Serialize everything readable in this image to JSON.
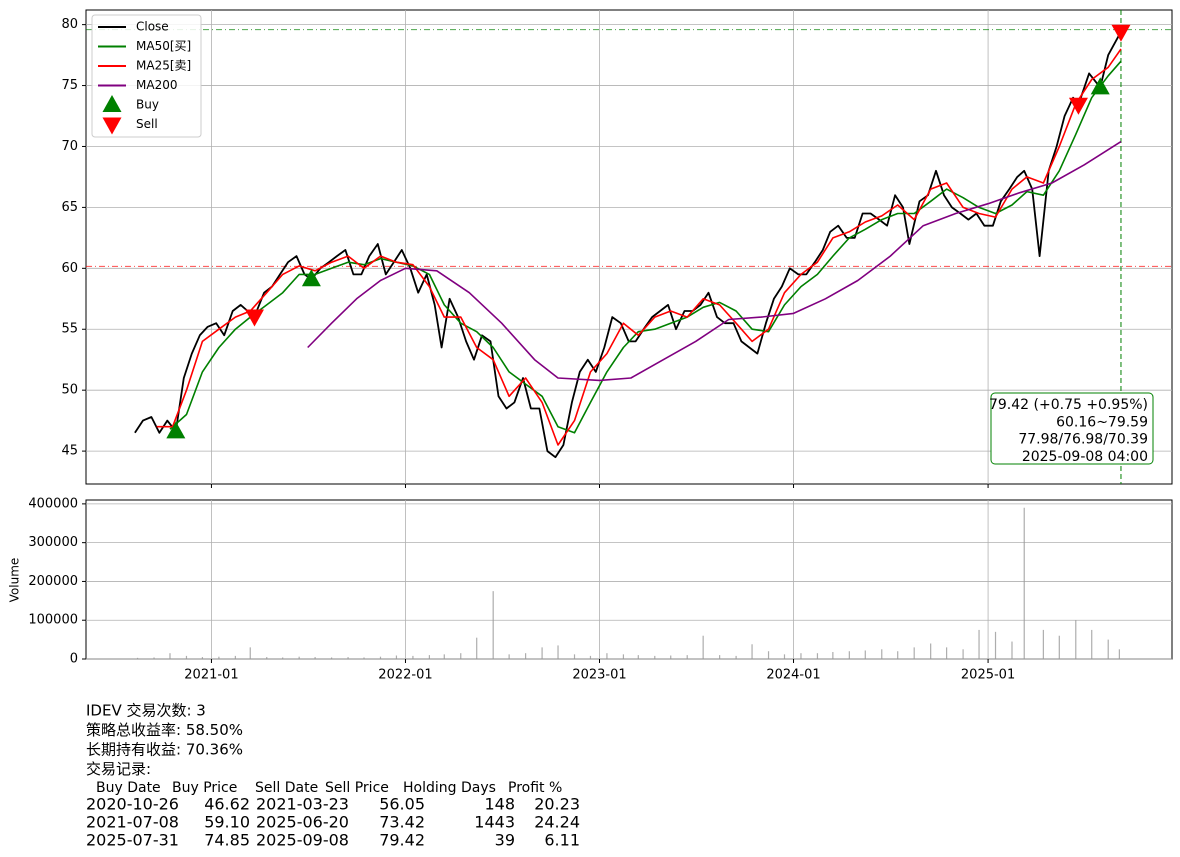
{
  "chart_data": [
    {
      "type": "line",
      "xlim": [
        "2020-05-10",
        "2025-12-13"
      ],
      "xticks": [
        "2021-01",
        "2022-01",
        "2023-01",
        "2024-01",
        "2025-01"
      ],
      "ylim": [
        42.3,
        81.2
      ],
      "yticks": [
        45,
        50,
        55,
        60,
        65,
        70,
        75,
        80
      ],
      "grid": true,
      "legend": "upper left",
      "series": [
        {
          "name": "Close",
          "color": "#000000",
          "x": [
            "2020-08-10",
            "2020-08-25",
            "2020-09-10",
            "2020-09-25",
            "2020-10-10",
            "2020-10-26",
            "2020-11-10",
            "2020-11-25",
            "2020-12-10",
            "2020-12-25",
            "2021-01-10",
            "2021-01-25",
            "2021-02-10",
            "2021-02-25",
            "2021-03-10",
            "2021-03-23",
            "2021-04-10",
            "2021-04-25",
            "2021-05-10",
            "2021-05-25",
            "2021-06-10",
            "2021-06-25",
            "2021-07-08",
            "2021-07-25",
            "2021-08-10",
            "2021-08-25",
            "2021-09-10",
            "2021-09-25",
            "2021-10-10",
            "2021-10-25",
            "2021-11-10",
            "2021-11-25",
            "2021-12-10",
            "2021-12-25",
            "2022-01-10",
            "2022-01-25",
            "2022-02-10",
            "2022-02-25",
            "2022-03-10",
            "2022-03-25",
            "2022-04-10",
            "2022-04-25",
            "2022-05-10",
            "2022-05-25",
            "2022-06-10",
            "2022-06-25",
            "2022-07-10",
            "2022-07-25",
            "2022-08-10",
            "2022-08-25",
            "2022-09-10",
            "2022-09-25",
            "2022-10-10",
            "2022-10-25",
            "2022-11-10",
            "2022-11-25",
            "2022-12-10",
            "2022-12-25",
            "2023-01-10",
            "2023-01-25",
            "2023-02-10",
            "2023-02-25",
            "2023-03-10",
            "2023-03-25",
            "2023-04-10",
            "2023-04-25",
            "2023-05-10",
            "2023-05-25",
            "2023-06-10",
            "2023-06-25",
            "2023-07-10",
            "2023-07-25",
            "2023-08-10",
            "2023-08-25",
            "2023-09-10",
            "2023-09-25",
            "2023-10-10",
            "2023-10-25",
            "2023-11-10",
            "2023-11-25",
            "2023-12-10",
            "2023-12-25",
            "2024-01-10",
            "2024-01-25",
            "2024-02-10",
            "2024-02-25",
            "2024-03-10",
            "2024-03-25",
            "2024-04-10",
            "2024-04-25",
            "2024-05-10",
            "2024-05-25",
            "2024-06-10",
            "2024-06-25",
            "2024-07-10",
            "2024-07-25",
            "2024-08-06",
            "2024-08-25",
            "2024-09-10",
            "2024-09-25",
            "2024-10-10",
            "2024-10-25",
            "2024-11-10",
            "2024-11-25",
            "2024-12-10",
            "2024-12-25",
            "2025-01-10",
            "2025-01-25",
            "2025-02-10",
            "2025-02-25",
            "2025-03-10",
            "2025-03-25",
            "2025-04-08",
            "2025-04-25",
            "2025-05-10",
            "2025-05-25",
            "2025-06-10",
            "2025-06-20",
            "2025-07-10",
            "2025-07-31",
            "2025-08-15",
            "2025-09-08"
          ],
          "values": [
            46.5,
            47.5,
            47.8,
            46.5,
            47.5,
            46.62,
            51,
            53,
            54.5,
            55.2,
            55.5,
            54.5,
            56.5,
            57,
            56.5,
            56.05,
            58,
            58.5,
            59.5,
            60.5,
            61,
            59.5,
            59.1,
            60,
            60.5,
            61,
            61.5,
            59.5,
            59.5,
            61,
            62,
            59.5,
            60.5,
            61.5,
            60,
            58,
            59.5,
            57,
            53.5,
            57.5,
            56,
            54,
            52.5,
            54.5,
            54,
            49.5,
            48.5,
            49,
            51,
            48.5,
            48.5,
            45,
            44.5,
            45.5,
            49,
            51.5,
            52.5,
            51.5,
            53.5,
            56,
            55.5,
            54,
            54,
            55,
            56,
            56.5,
            57,
            55,
            56.5,
            56.5,
            57,
            58,
            56,
            55.5,
            55.5,
            54,
            53.5,
            53,
            55.5,
            57.5,
            58.5,
            60,
            59.5,
            59.5,
            60.5,
            61.5,
            63,
            63.5,
            62.5,
            62.5,
            64.5,
            64.5,
            64,
            63.5,
            66,
            65,
            62,
            65.5,
            66,
            68,
            66,
            65,
            64.5,
            64,
            64.5,
            63.5,
            63.5,
            65.5,
            66.5,
            67.5,
            68,
            66.5,
            61,
            68,
            70,
            72.5,
            74,
            73.42,
            76,
            74.85,
            77.5,
            79.42
          ]
        },
        {
          "name": "MA50[买]",
          "color": "#008000",
          "x": [
            "2020-10-15",
            "2020-11-15",
            "2020-12-15",
            "2021-01-15",
            "2021-02-15",
            "2021-03-15",
            "2021-04-15",
            "2021-05-15",
            "2021-06-15",
            "2021-07-15",
            "2021-08-15",
            "2021-09-15",
            "2021-10-15",
            "2021-11-15",
            "2021-12-15",
            "2022-01-15",
            "2022-02-15",
            "2022-03-15",
            "2022-04-15",
            "2022-05-15",
            "2022-06-15",
            "2022-07-15",
            "2022-08-15",
            "2022-09-15",
            "2022-10-15",
            "2022-11-15",
            "2022-12-15",
            "2023-01-15",
            "2023-02-15",
            "2023-03-15",
            "2023-04-15",
            "2023-05-15",
            "2023-06-15",
            "2023-07-15",
            "2023-08-15",
            "2023-09-15",
            "2023-10-15",
            "2023-11-15",
            "2023-12-15",
            "2024-01-15",
            "2024-02-15",
            "2024-03-15",
            "2024-04-15",
            "2024-05-15",
            "2024-06-15",
            "2024-07-15",
            "2024-08-15",
            "2024-09-15",
            "2024-10-15",
            "2024-11-15",
            "2024-12-15",
            "2025-01-15",
            "2025-02-15",
            "2025-03-15",
            "2025-04-15",
            "2025-05-15",
            "2025-06-15",
            "2025-07-15",
            "2025-08-15",
            "2025-09-08"
          ],
          "values": [
            46.8,
            48,
            51.5,
            53.5,
            55,
            56,
            57,
            58,
            59.5,
            59.5,
            60,
            60.5,
            60.3,
            60.8,
            60.5,
            60.2,
            59.5,
            57,
            55.5,
            54.8,
            53.5,
            51.5,
            50.5,
            49.5,
            47,
            46.5,
            49,
            51.5,
            53.5,
            54.8,
            55,
            55.5,
            56,
            56.8,
            57.2,
            56.5,
            55,
            54.8,
            57,
            58.5,
            59.5,
            61,
            62.5,
            63.2,
            64,
            64.5,
            64.5,
            65.5,
            66.5,
            65.8,
            65,
            64.5,
            65.2,
            66.3,
            66,
            68,
            71,
            74,
            75.8,
            77
          ]
        },
        {
          "name": "MA25[卖]",
          "color": "#ff0000",
          "x": [
            "2020-09-20",
            "2020-10-20",
            "2020-11-15",
            "2020-12-15",
            "2021-01-15",
            "2021-02-15",
            "2021-03-15",
            "2021-04-15",
            "2021-05-15",
            "2021-06-15",
            "2021-07-15",
            "2021-08-15",
            "2021-09-15",
            "2021-10-15",
            "2021-11-15",
            "2021-12-15",
            "2022-01-15",
            "2022-02-15",
            "2022-03-15",
            "2022-04-15",
            "2022-05-15",
            "2022-06-15",
            "2022-07-15",
            "2022-08-15",
            "2022-09-15",
            "2022-10-15",
            "2022-11-15",
            "2022-12-15",
            "2023-01-15",
            "2023-02-15",
            "2023-03-15",
            "2023-04-15",
            "2023-05-15",
            "2023-06-15",
            "2023-07-15",
            "2023-08-15",
            "2023-09-15",
            "2023-10-15",
            "2023-11-15",
            "2023-12-15",
            "2024-01-15",
            "2024-02-15",
            "2024-03-15",
            "2024-04-15",
            "2024-05-15",
            "2024-06-15",
            "2024-07-15",
            "2024-08-15",
            "2024-09-15",
            "2024-10-15",
            "2024-11-15",
            "2024-12-15",
            "2025-01-15",
            "2025-02-15",
            "2025-03-15",
            "2025-04-15",
            "2025-05-15",
            "2025-06-15",
            "2025-07-15",
            "2025-08-15",
            "2025-09-08"
          ],
          "values": [
            47,
            47,
            50,
            54,
            55,
            56,
            56.5,
            58,
            59.5,
            60.2,
            59.8,
            60.5,
            61,
            60,
            61,
            60.5,
            60.3,
            58.5,
            56,
            56,
            53.5,
            52.5,
            49.5,
            51,
            49,
            45.5,
            47.5,
            51.5,
            53,
            55.5,
            54.5,
            56,
            56.5,
            56,
            57.5,
            57,
            55.5,
            54,
            55,
            58,
            59.5,
            60.5,
            62.5,
            63,
            63.8,
            64.3,
            65.2,
            64,
            66.5,
            67,
            65,
            64.5,
            64.2,
            66.5,
            67.5,
            67,
            70,
            73.5,
            75.5,
            76.5,
            78
          ]
        },
        {
          "name": "MA200",
          "color": "#800080",
          "x": [
            "2021-07-01",
            "2021-08-15",
            "2021-10-01",
            "2021-11-15",
            "2022-01-01",
            "2022-03-01",
            "2022-05-01",
            "2022-07-01",
            "2022-09-01",
            "2022-10-15",
            "2023-01-01",
            "2023-03-01",
            "2023-05-01",
            "2023-07-01",
            "2023-09-01",
            "2023-11-01",
            "2024-01-01",
            "2024-03-01",
            "2024-05-01",
            "2024-07-01",
            "2024-09-01",
            "2024-11-01",
            "2025-01-01",
            "2025-03-01",
            "2025-05-01",
            "2025-07-01",
            "2025-09-08"
          ],
          "values": [
            53.5,
            55.5,
            57.5,
            59,
            60,
            59.8,
            58,
            55.5,
            52.5,
            51,
            50.8,
            51,
            52.5,
            54,
            55.8,
            56,
            56.3,
            57.5,
            59,
            61,
            63.5,
            64.5,
            65.3,
            66.2,
            67,
            68.5,
            70.4
          ]
        },
        {
          "name": "Buy",
          "color": "#008000",
          "marker": "^",
          "x": [
            "2020-10-26",
            "2021-07-08",
            "2025-07-31"
          ],
          "values": [
            46.62,
            59.1,
            74.85
          ]
        },
        {
          "name": "Sell",
          "color": "#ff0000",
          "marker": "v",
          "x": [
            "2021-03-23",
            "2025-06-20",
            "2025-09-08"
          ],
          "values": [
            56.05,
            73.42,
            79.42
          ]
        }
      ],
      "hlines": [
        {
          "value": 60.16,
          "color": "#ff0000"
        },
        {
          "value": 79.59,
          "color": "#008000"
        }
      ],
      "vline": {
        "x": "2025-09-08",
        "color": "#008000"
      },
      "annotation": {
        "color": "#008000",
        "lines": [
          "79.42 (+0.75 +0.95%)",
          "60.16~79.59",
          "77.98/76.98/70.39",
          "2025-09-08 04:00"
        ]
      }
    },
    {
      "type": "bar",
      "ylabel": "Volume",
      "xlim": [
        "2020-05-10",
        "2025-12-13"
      ],
      "xticks": [
        "2021-01",
        "2022-01",
        "2023-01",
        "2024-01",
        "2025-01"
      ],
      "ylim": [
        0,
        410000
      ],
      "yticks": [
        0,
        100000,
        200000,
        300000,
        400000
      ],
      "grid": true,
      "color": "#999999",
      "x": [
        "2020-08-15",
        "2020-09-15",
        "2020-10-15",
        "2020-11-15",
        "2020-12-15",
        "2021-01-15",
        "2021-02-15",
        "2021-03-15",
        "2021-04-15",
        "2021-05-15",
        "2021-06-15",
        "2021-07-15",
        "2021-08-15",
        "2021-09-15",
        "2021-10-15",
        "2021-11-15",
        "2021-12-15",
        "2022-01-15",
        "2022-02-15",
        "2022-03-15",
        "2022-04-15",
        "2022-05-15",
        "2022-06-15",
        "2022-07-15",
        "2022-08-15",
        "2022-09-15",
        "2022-10-15",
        "2022-11-15",
        "2022-12-15",
        "2023-01-15",
        "2023-02-15",
        "2023-03-15",
        "2023-04-15",
        "2023-05-15",
        "2023-06-15",
        "2023-07-15",
        "2023-08-15",
        "2023-09-15",
        "2023-10-15",
        "2023-11-15",
        "2023-12-15",
        "2024-01-15",
        "2024-02-15",
        "2024-03-15",
        "2024-04-15",
        "2024-05-15",
        "2024-06-15",
        "2024-07-15",
        "2024-08-15",
        "2024-09-15",
        "2024-10-15",
        "2024-11-15",
        "2024-12-15",
        "2025-01-15",
        "2025-02-15",
        "2025-03-10",
        "2025-04-15",
        "2025-05-15",
        "2025-06-15",
        "2025-07-15",
        "2025-08-15",
        "2025-09-05"
      ],
      "values": [
        3000,
        4000,
        15000,
        8000,
        5000,
        6000,
        8000,
        30000,
        5000,
        4000,
        6000,
        5000,
        4000,
        5000,
        4000,
        6000,
        9000,
        8000,
        10000,
        12000,
        15000,
        55000,
        175000,
        12000,
        15000,
        30000,
        35000,
        12000,
        8000,
        15000,
        12000,
        10000,
        8000,
        9000,
        10000,
        60000,
        10000,
        8000,
        38000,
        20000,
        12000,
        15000,
        15000,
        18000,
        20000,
        22000,
        25000,
        20000,
        30000,
        40000,
        30000,
        25000,
        75000,
        70000,
        45000,
        390000,
        75000,
        60000,
        100000,
        75000,
        50000,
        25000
      ]
    }
  ],
  "report": {
    "lines": [
      "IDEV 交易次数: 3",
      "策略总收益率: 58.50%",
      "长期持有收益: 70.36%",
      "交易记录:"
    ],
    "columns": [
      "Buy Date",
      "Buy Price",
      "Sell Date",
      "Sell Price",
      "Holding Days",
      "Profit %"
    ],
    "rows": [
      [
        "2020-10-26",
        "46.62",
        "2021-03-23",
        "56.05",
        "148",
        "20.23"
      ],
      [
        "2021-07-08",
        "59.10",
        "2025-06-20",
        "73.42",
        "1443",
        "24.24"
      ],
      [
        "2025-07-31",
        "74.85",
        "2025-09-08",
        "79.42",
        "39",
        "6.11"
      ]
    ]
  }
}
